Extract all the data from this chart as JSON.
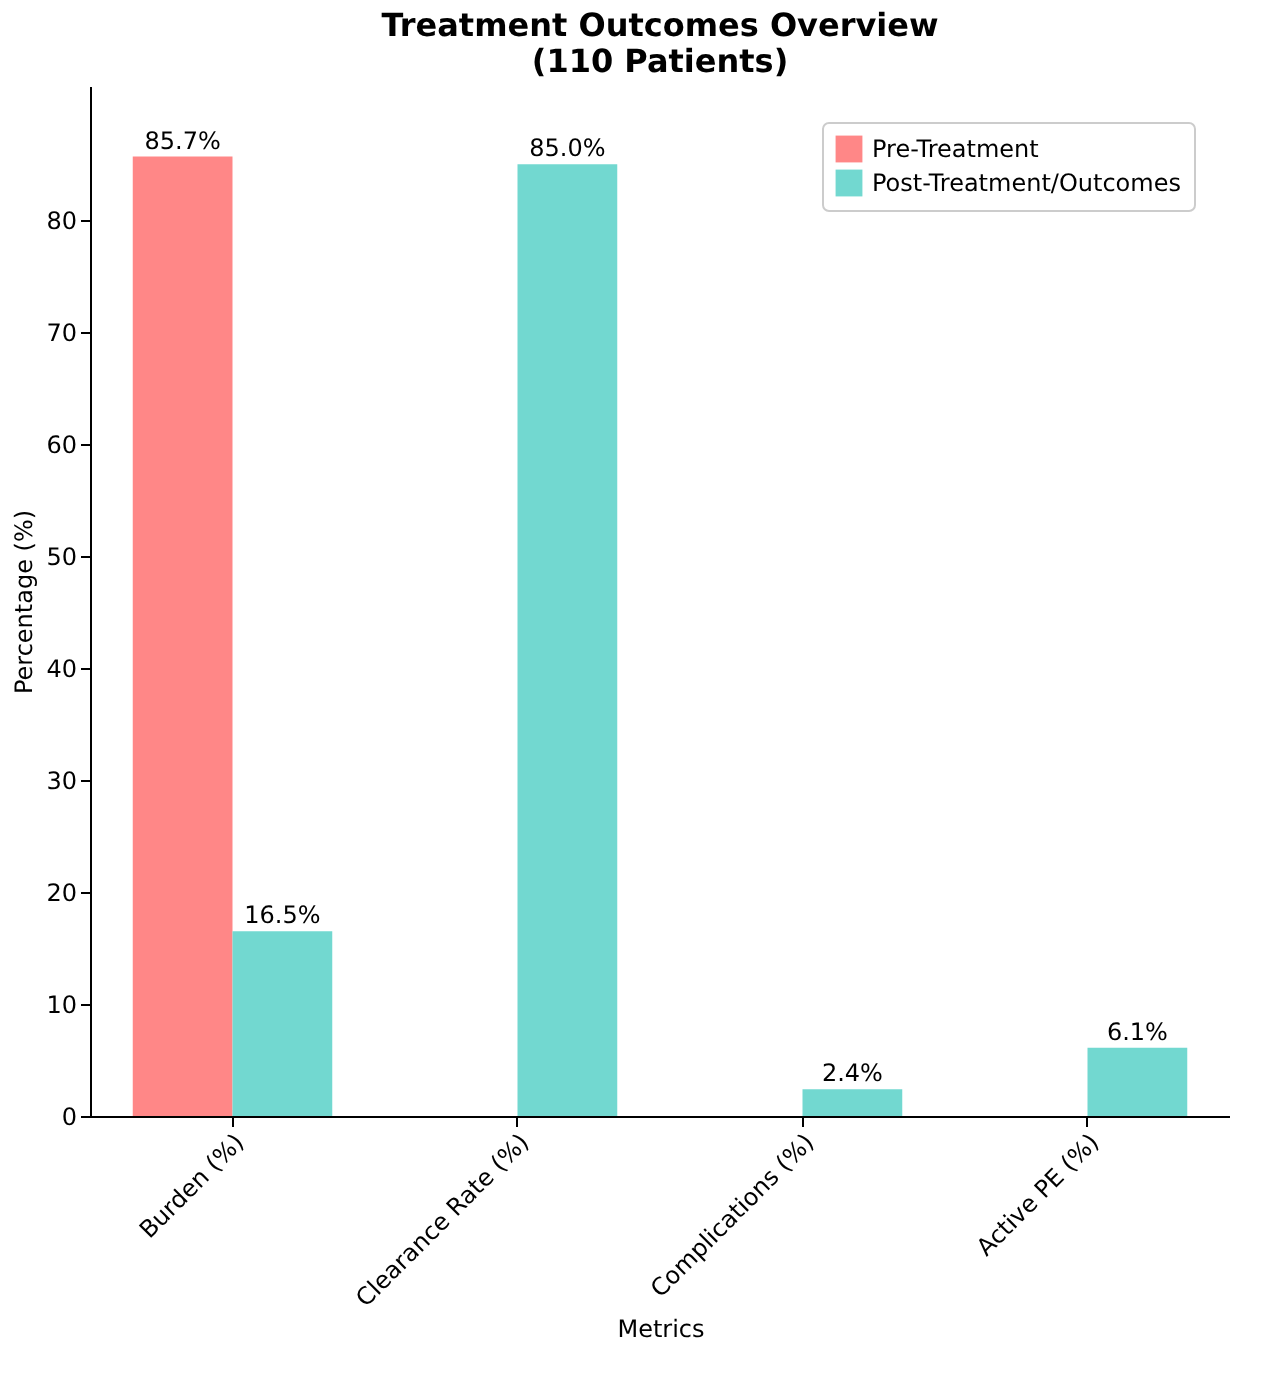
{
  "chart_data": {
    "type": "bar",
    "title": "Treatment Outcomes Overview\n(110 Patients)",
    "xlabel": "Metrics",
    "ylabel": "Percentage (%)",
    "categories": [
      "Burden (%)",
      "Clearance Rate (%)",
      "Complications (%)",
      "Active PE (%)"
    ],
    "series": [
      {
        "name": "Pre-Treatment",
        "color": "#ff8787",
        "values": [
          85.7,
          null,
          null,
          null
        ],
        "value_labels": [
          "85.7%",
          null,
          null,
          null
        ]
      },
      {
        "name": "Post-Treatment/Outcomes",
        "color": "#72d8d0",
        "values": [
          16.5,
          85.0,
          2.4,
          6.1
        ],
        "value_labels": [
          "16.5%",
          "85.0%",
          "2.4%",
          "6.1%"
        ]
      }
    ],
    "ylim": [
      0,
      92
    ],
    "yticks": [
      0,
      10,
      20,
      30,
      40,
      50,
      60,
      70,
      80
    ],
    "grid": false,
    "legend": "top right"
  }
}
